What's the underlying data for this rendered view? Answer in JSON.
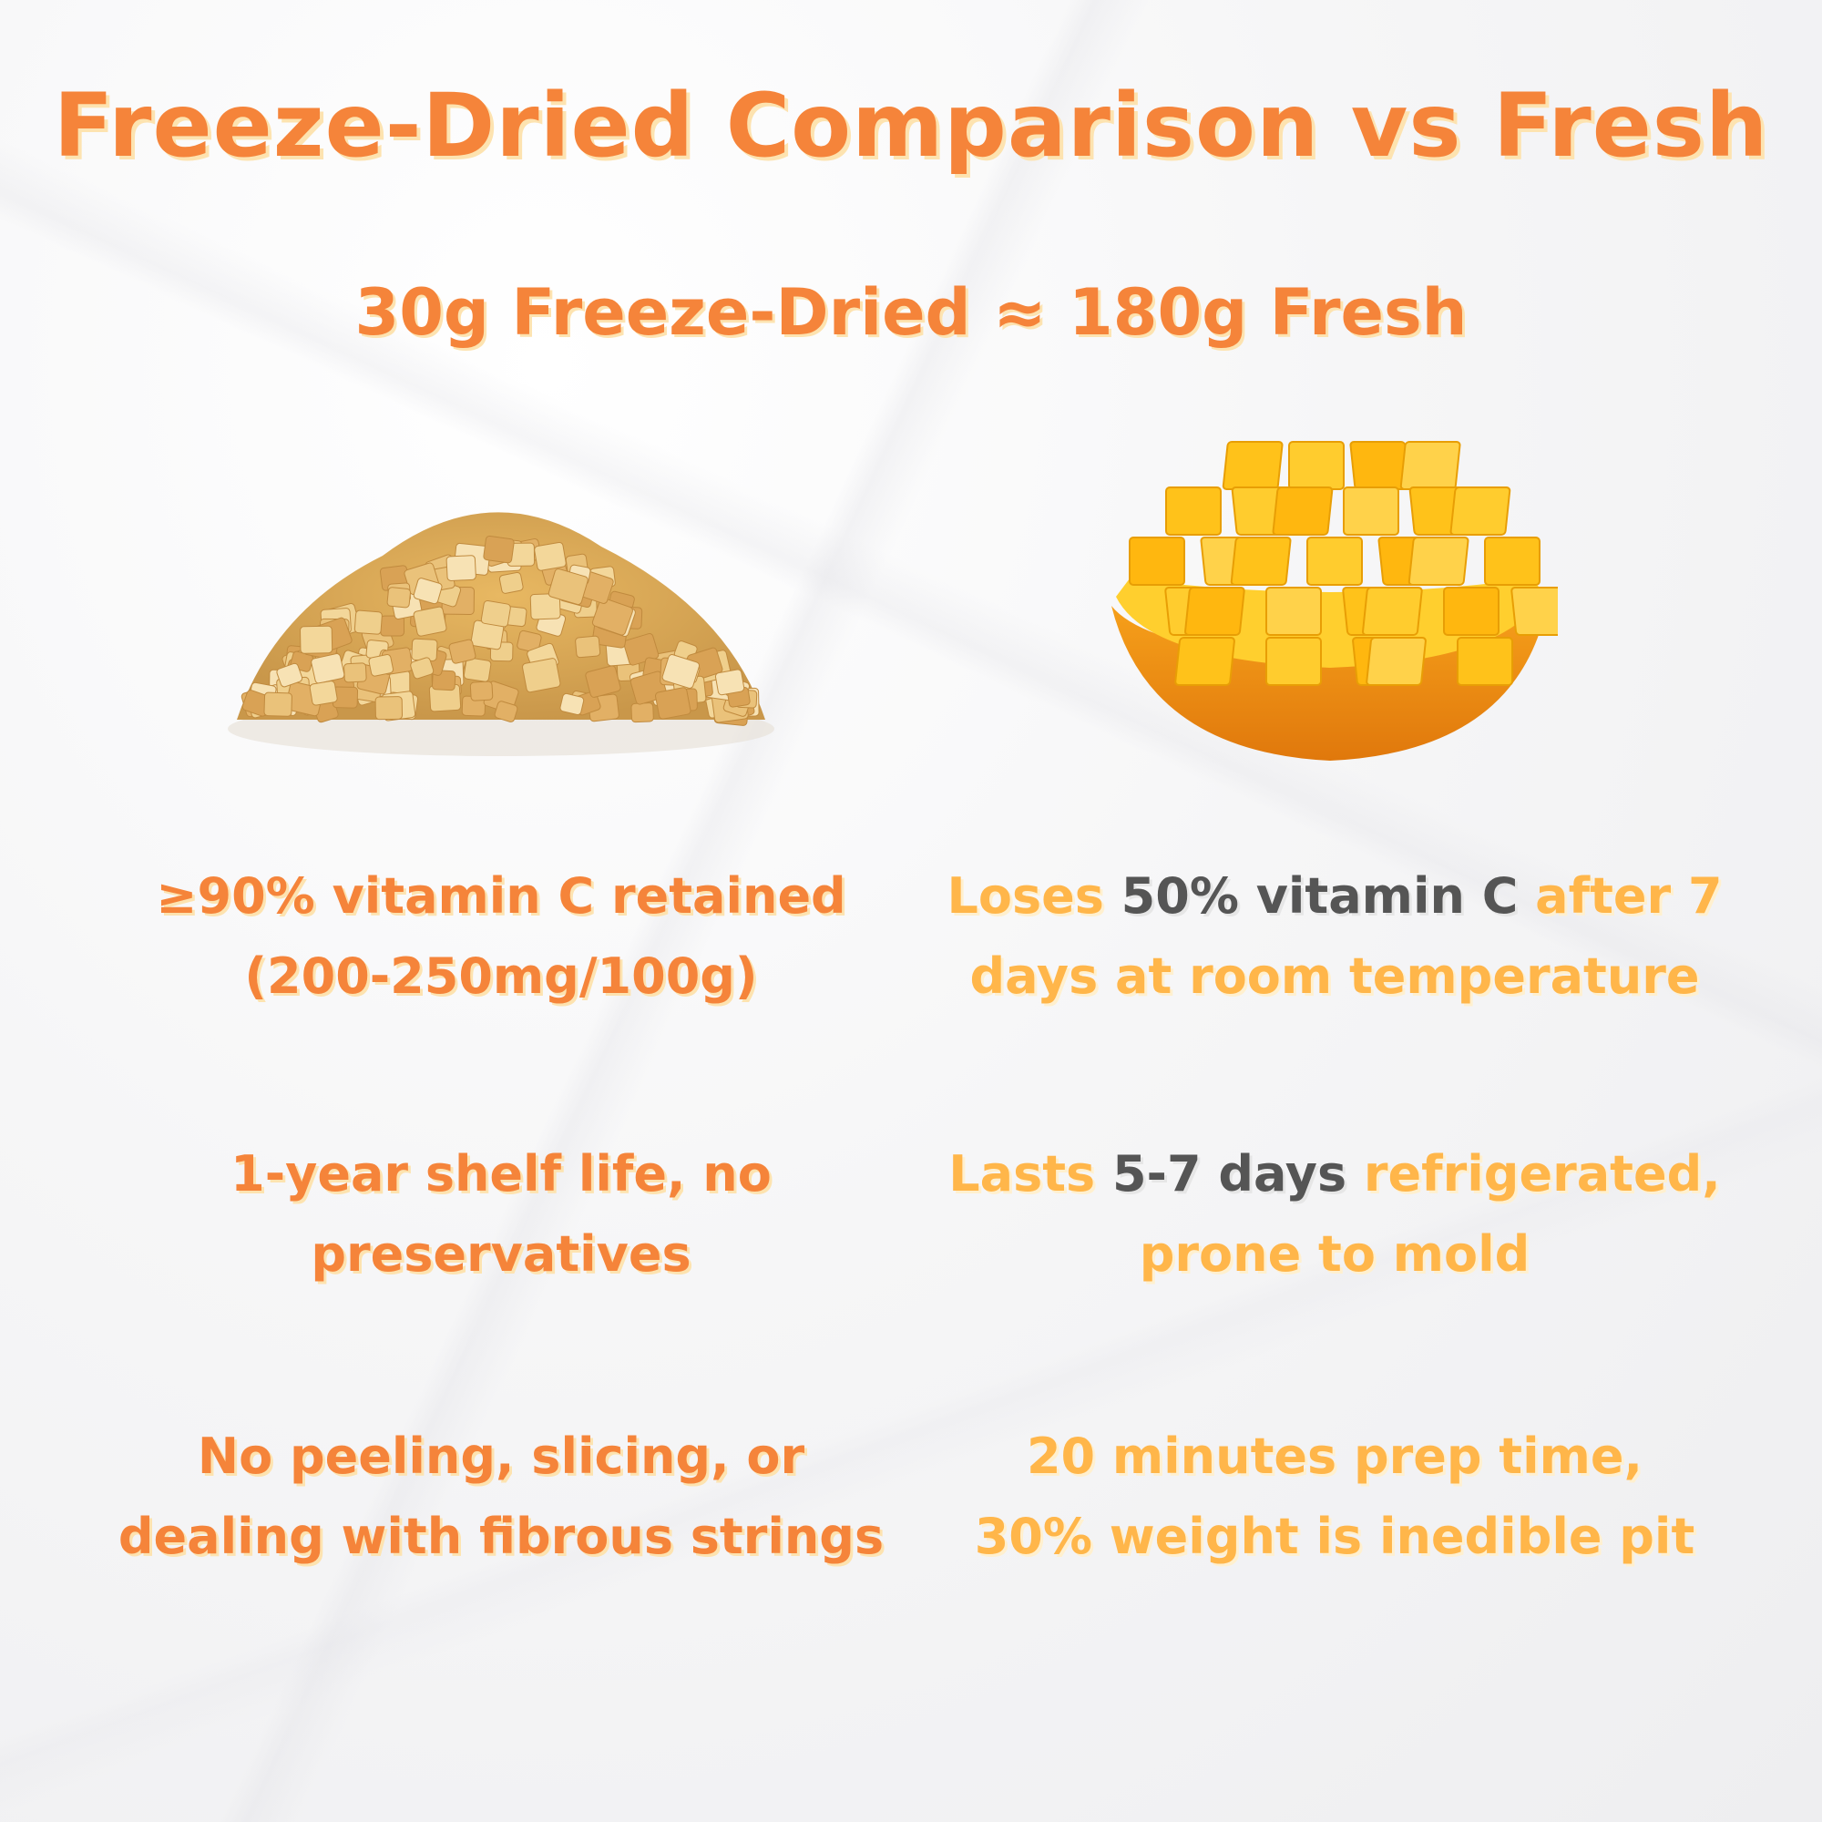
{
  "header": {
    "title": "Freeze-Dried Comparison vs Fresh",
    "subtitle": "30g Freeze-Dried ≈ 180g Fresh"
  },
  "images": {
    "freeze_dried": "freeze-dried-mango-pile",
    "fresh": "fresh-mango-hedgehog-cut"
  },
  "comparisons": [
    {
      "freeze_dried": {
        "line1": "≥90% vitamin C retained",
        "line2": "(200-250mg/100g)"
      },
      "fresh": {
        "l1a": "Loses ",
        "l1b": "50% vitamin C",
        "l1c": " after 7",
        "line2": "days at room temperature"
      }
    },
    {
      "freeze_dried": {
        "line1": "1-year shelf life, no",
        "line2": "preservatives"
      },
      "fresh": {
        "l1a": "Lasts ",
        "l1b": "5-7 days",
        "l1c": " refrigerated,",
        "line2": "prone to mold"
      }
    },
    {
      "freeze_dried": {
        "line1": "No peeling, slicing, or",
        "line2": "dealing with fibrous strings"
      },
      "fresh": {
        "line1": "20 minutes prep time,",
        "line2": "30% weight is inedible pit"
      }
    }
  ],
  "colors": {
    "primary_orange": "#f5843a",
    "light_orange": "#ffb64a",
    "highlight_gray": "#555555"
  }
}
